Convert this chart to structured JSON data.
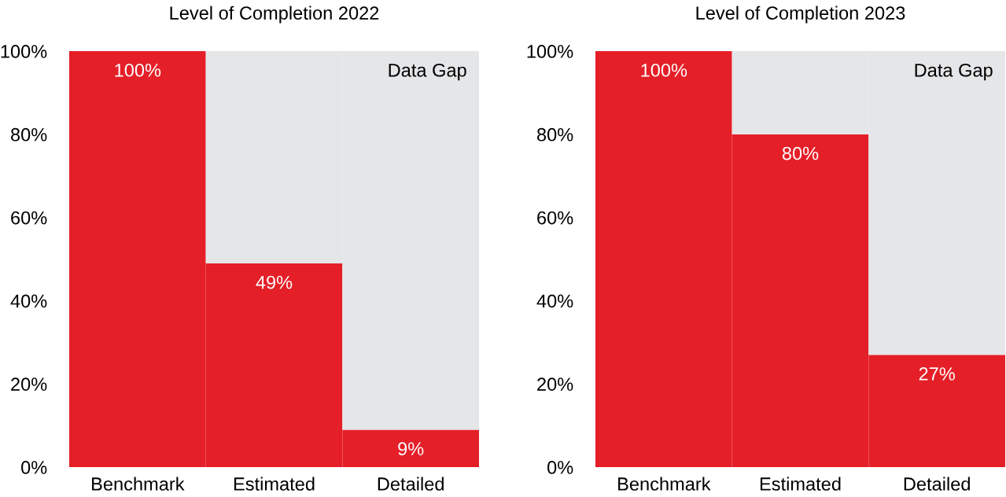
{
  "chart_data": [
    {
      "type": "bar",
      "title": "Level of Completion 2022",
      "categories": [
        "Benchmark",
        "Estimated",
        "Detailed"
      ],
      "stacked": true,
      "series": [
        {
          "color": "#e41f28",
          "values": [
            100,
            49,
            9
          ],
          "value_labels": [
            "100%",
            "49%",
            "9%"
          ]
        },
        {
          "name": "Data Gap",
          "color": "#e5e6e8",
          "values": [
            null,
            51,
            91
          ]
        }
      ],
      "ylim": [
        0,
        100
      ],
      "yticks": [
        {
          "value": 0,
          "label": "0%"
        },
        {
          "value": 20,
          "label": "20%"
        },
        {
          "value": 40,
          "label": "40%"
        },
        {
          "value": 60,
          "label": "60%"
        },
        {
          "value": 80,
          "label": "80%"
        },
        {
          "value": 100,
          "label": "100%"
        }
      ]
    },
    {
      "type": "bar",
      "title": "Level of Completion 2023",
      "categories": [
        "Benchmark",
        "Estimated",
        "Detailed"
      ],
      "stacked": true,
      "series": [
        {
          "color": "#e41f28",
          "values": [
            100,
            80,
            27
          ],
          "value_labels": [
            "100%",
            "80%",
            "27%"
          ]
        },
        {
          "name": "Data Gap",
          "color": "#e5e6e8",
          "values": [
            null,
            20,
            73
          ]
        }
      ],
      "ylim": [
        0,
        100
      ],
      "yticks": [
        {
          "value": 0,
          "label": "0%"
        },
        {
          "value": 20,
          "label": "20%"
        },
        {
          "value": 40,
          "label": "40%"
        },
        {
          "value": 60,
          "label": "60%"
        },
        {
          "value": 80,
          "label": "80%"
        },
        {
          "value": 100,
          "label": "100%"
        }
      ]
    }
  ]
}
